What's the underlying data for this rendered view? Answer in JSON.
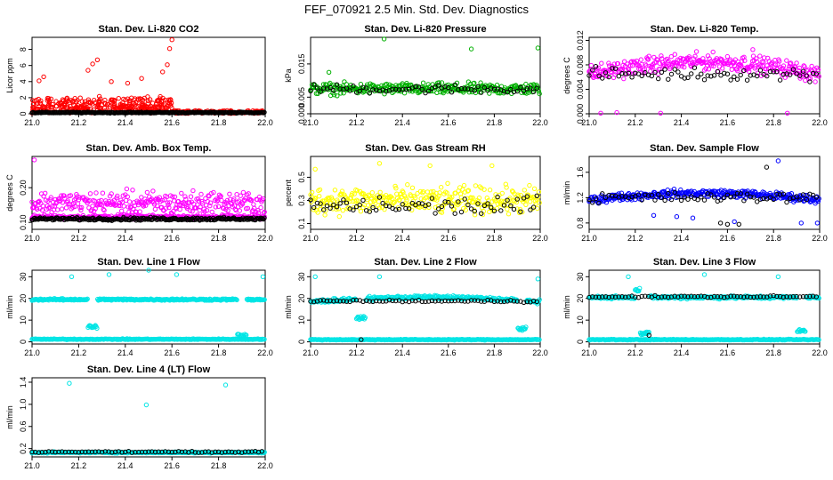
{
  "title": "FEF_070921  2.5 Min. Std. Dev. Diagnostics",
  "chart_data": [
    {
      "type": "scatter",
      "title": "Stan. Dev. Li-820 CO2",
      "ylabel": "Licor ppm",
      "xlim": [
        21.0,
        22.0
      ],
      "x_ticks": [
        "21.0",
        "21.2",
        "21.4",
        "21.6",
        "21.8",
        "22.0"
      ],
      "ylim": [
        0,
        9.5
      ],
      "y_ticks": [
        "0",
        "2",
        "4",
        "6",
        "8"
      ],
      "colors": {
        "main": "#ff0000",
        "secondary": "#000000"
      },
      "series": [
        {
          "kind": "fill",
          "band_lo": 0.6,
          "band_hi": 2.2,
          "x_end": 21.6,
          "spikes": [
            [
              21.03,
              4.1
            ],
            [
              21.05,
              4.6
            ],
            [
              21.24,
              5.4
            ],
            [
              21.26,
              6.2
            ],
            [
              21.28,
              6.7
            ],
            [
              21.34,
              4.0
            ],
            [
              21.41,
              3.8
            ],
            [
              21.47,
              4.4
            ],
            [
              21.56,
              5.2
            ],
            [
              21.58,
              6.1
            ],
            [
              21.59,
              8.1
            ],
            [
              21.6,
              9.2
            ]
          ],
          "level_after": 0.35
        },
        {
          "kind": "flat",
          "level": 0.15,
          "jitter": 0.1
        }
      ]
    },
    {
      "type": "scatter",
      "title": "Stan. Dev. Li-820 Pressure",
      "ylabel": "kPa",
      "xlim": [
        21.0,
        22.0
      ],
      "x_ticks": [
        "21.0",
        "21.2",
        "21.4",
        "21.6",
        "21.8",
        "22.0"
      ],
      "ylim": [
        0,
        0.023
      ],
      "y_ticks": [
        "0.000",
        "0.005",
        "0.015"
      ],
      "colors": {
        "main": "#00b000",
        "secondary": "#000000"
      },
      "series": [
        {
          "kind": "band",
          "center": 0.0075,
          "spread": 0.0025,
          "spikes": [
            [
              21.32,
              0.0225
            ],
            [
              21.7,
              0.0195
            ],
            [
              21.99,
              0.0198
            ],
            [
              21.08,
              0.0125
            ]
          ]
        },
        {
          "kind": "sparse",
          "center": 0.0075,
          "spread": 0.002
        }
      ]
    },
    {
      "type": "scatter",
      "title": "Stan. Dev. Li-820 Temp.",
      "ylabel": "degrees C",
      "xlim": [
        21.0,
        22.0
      ],
      "x_ticks": [
        "21.0",
        "21.2",
        "21.4",
        "21.6",
        "21.8",
        "22.0"
      ],
      "ylim": [
        0,
        0.0125
      ],
      "y_ticks": [
        "0.000",
        "0.004",
        "0.008",
        "0.012"
      ],
      "colors": {
        "main": "#ff00ff",
        "secondary": "#000000"
      },
      "series": [
        {
          "kind": "band",
          "center": 0.0065,
          "spread": 0.002,
          "hump": 0.002,
          "spikes": [
            [
              21.05,
              0.0001
            ],
            [
              21.31,
              0.0001
            ],
            [
              21.12,
              0.0002
            ],
            [
              21.71,
              0.0105
            ],
            [
              21.86,
              0.0001
            ]
          ]
        },
        {
          "kind": "sparse",
          "center": 0.0065,
          "spread": 0.0015
        }
      ]
    },
    {
      "type": "scatter",
      "title": "Stan. Dev. Amb. Box Temp.",
      "ylabel": "degrees C",
      "xlim": [
        21.0,
        22.0
      ],
      "x_ticks": [
        "21.0",
        "21.2",
        "21.4",
        "21.6",
        "21.8",
        "22.0"
      ],
      "ylim": [
        0.08,
        0.29
      ],
      "y_ticks": [
        "0.10",
        "0.20"
      ],
      "colors": {
        "main": "#ff00ff",
        "secondary": "#000000"
      },
      "series": [
        {
          "kind": "band",
          "center": 0.155,
          "spread": 0.05,
          "spikes": [
            [
              21.01,
              0.28
            ]
          ]
        },
        {
          "kind": "band",
          "center": 0.115,
          "spread": 0.008
        },
        {
          "kind": "flat",
          "level": 0.11,
          "jitter": 0.006
        }
      ]
    },
    {
      "type": "scatter",
      "title": "Stan. Dev. Gas Stream RH",
      "ylabel": "percent",
      "xlim": [
        21.0,
        22.0
      ],
      "x_ticks": [
        "21.0",
        "21.2",
        "21.4",
        "21.6",
        "21.8",
        "22.0"
      ],
      "ylim": [
        0.05,
        0.68
      ],
      "y_ticks": [
        "0.1",
        "0.3",
        "0.5"
      ],
      "colors": {
        "main": "#ffff00",
        "secondary": "#000000"
      },
      "series": [
        {
          "kind": "band",
          "center": 0.3,
          "spread": 0.17,
          "spikes": [
            [
              21.3,
              0.62
            ],
            [
              21.52,
              0.6
            ],
            [
              21.79,
              0.6
            ],
            [
              21.02,
              0.57
            ]
          ]
        },
        {
          "kind": "sparse",
          "center": 0.25,
          "spread": 0.12
        }
      ]
    },
    {
      "type": "scatter",
      "title": "Stan. Dev. Sample Flow",
      "ylabel": "ml/min",
      "xlim": [
        21.0,
        22.0
      ],
      "x_ticks": [
        "21.0",
        "21.2",
        "21.4",
        "21.6",
        "21.8",
        "22.0"
      ],
      "ylim": [
        0.7,
        1.85
      ],
      "y_ticks": [
        "0.8",
        "1.2",
        "1.6"
      ],
      "colors": {
        "main": "#0000ff",
        "secondary": "#000000"
      },
      "series": [
        {
          "kind": "band",
          "center": 1.17,
          "spread": 0.09,
          "hump": 0.1,
          "spikes": [
            [
              21.82,
              1.78
            ],
            [
              21.63,
              0.82
            ],
            [
              21.38,
              0.9
            ],
            [
              21.45,
              0.88
            ],
            [
              21.28,
              0.92
            ],
            [
              21.92,
              0.8
            ],
            [
              21.99,
              0.8
            ]
          ]
        },
        {
          "kind": "sparse",
          "center": 1.2,
          "spread": 0.12,
          "spikes": [
            [
              21.77,
              1.68
            ],
            [
              21.57,
              0.8
            ],
            [
              21.6,
              0.78
            ],
            [
              21.65,
              0.78
            ]
          ]
        }
      ]
    },
    {
      "type": "scatter",
      "title": "Stan. Dev. Line 1 Flow",
      "ylabel": "ml/min",
      "xlim": [
        21.0,
        22.0
      ],
      "x_ticks": [
        "21.0",
        "21.2",
        "21.4",
        "21.6",
        "21.8",
        "22.0"
      ],
      "ylim": [
        -1,
        33
      ],
      "y_ticks": [
        "0",
        "10",
        "20",
        "30"
      ],
      "colors": {
        "main": "#00e5e5",
        "secondary": "#000000"
      },
      "series": [
        {
          "kind": "band",
          "center": 19.5,
          "spread": 0.6,
          "dips": [
            [
              21.26,
              7
            ],
            [
              21.9,
              3
            ]
          ],
          "spikes": [
            [
              21.17,
              30
            ],
            [
              21.33,
              31
            ],
            [
              21.99,
              30
            ],
            [
              21.62,
              31
            ],
            [
              21.5,
              33
            ]
          ]
        },
        {
          "kind": "flat",
          "level": 1.2,
          "jitter": 0.3
        }
      ]
    },
    {
      "type": "scatter",
      "title": "Stan. Dev. Line 2 Flow",
      "ylabel": "ml/min",
      "xlim": [
        21.0,
        22.0
      ],
      "x_ticks": [
        "21.0",
        "21.2",
        "21.4",
        "21.6",
        "21.8",
        "22.0"
      ],
      "ylim": [
        -1,
        33
      ],
      "y_ticks": [
        "0",
        "10",
        "20",
        "30"
      ],
      "colors": {
        "main": "#00e5e5",
        "secondary": "#000000"
      },
      "series": [
        {
          "kind": "flat",
          "level": 1.0,
          "jitter": 0.3
        },
        {
          "kind": "band",
          "center": 18.5,
          "spread": 1.2,
          "hump": 2,
          "dips": [
            [
              21.22,
              11
            ],
            [
              21.92,
              6
            ]
          ],
          "spikes": [
            [
              21.02,
              30
            ],
            [
              21.3,
              30
            ],
            [
              21.99,
              29
            ]
          ]
        },
        {
          "kind": "sparse",
          "center": 18.8,
          "spread": 0.8,
          "spikes": [
            [
              21.22,
              1
            ]
          ]
        }
      ]
    },
    {
      "type": "scatter",
      "title": "Stan. Dev. Line 3 Flow",
      "ylabel": "ml/min",
      "xlim": [
        21.0,
        22.0
      ],
      "x_ticks": [
        "21.0",
        "21.2",
        "21.4",
        "21.6",
        "21.8",
        "22.0"
      ],
      "ylim": [
        -1,
        33
      ],
      "y_ticks": [
        "0",
        "10",
        "20",
        "30"
      ],
      "colors": {
        "main": "#00e5e5",
        "secondary": "#000000"
      },
      "series": [
        {
          "kind": "flat",
          "level": 1.0,
          "jitter": 0.3
        },
        {
          "kind": "band",
          "center": 20.5,
          "spread": 1.0,
          "dips": [
            [
              21.22,
              24
            ],
            [
              21.24,
              4
            ],
            [
              21.92,
              5
            ]
          ],
          "spikes": [
            [
              21.17,
              30
            ],
            [
              21.5,
              31
            ],
            [
              21.82,
              30
            ]
          ]
        },
        {
          "kind": "sparse",
          "center": 20.8,
          "spread": 0.6,
          "spikes": [
            [
              21.26,
              3
            ]
          ]
        }
      ]
    },
    {
      "type": "scatter",
      "title": "Stan. Dev. Line 4 (LT) Flow",
      "ylabel": "ml/min",
      "xlim": [
        21.0,
        22.0
      ],
      "x_ticks": [
        "21.0",
        "21.2",
        "21.4",
        "21.6",
        "21.8",
        "22.0"
      ],
      "ylim": [
        0.05,
        1.48
      ],
      "y_ticks": [
        "0.2",
        "0.6",
        "1.0",
        "1.4"
      ],
      "colors": {
        "main": "#00e5e5",
        "secondary": "#000000"
      },
      "series": [
        {
          "kind": "band",
          "center": 0.13,
          "spread": 0.015,
          "spikes": [
            [
              21.16,
              1.38
            ],
            [
              21.49,
              0.99
            ],
            [
              21.83,
              1.35
            ]
          ]
        },
        {
          "kind": "sparse",
          "center": 0.14,
          "spread": 0.015
        }
      ]
    }
  ]
}
